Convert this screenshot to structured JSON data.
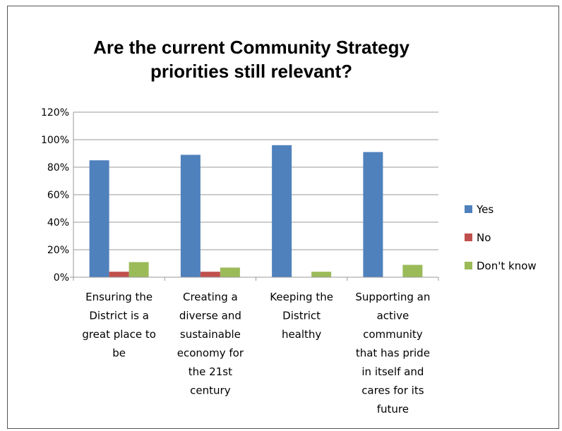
{
  "chart_data": {
    "type": "bar",
    "title_lines": [
      "Are the current Community Strategy",
      "priorities still relevant?"
    ],
    "categories": [
      [
        "Ensuring the",
        "District is a",
        "great place to",
        "be"
      ],
      [
        "Creating a",
        "diverse and",
        "sustainable",
        "economy for",
        "the 21st",
        "century"
      ],
      [
        "Keeping the",
        "District",
        "healthy"
      ],
      [
        "Supporting an",
        "active",
        "community",
        "that has pride",
        "in itself and",
        "cares for its",
        "future"
      ]
    ],
    "series": [
      {
        "name": "Yes",
        "color": "#4f81bd",
        "values": [
          85,
          89,
          96,
          91
        ]
      },
      {
        "name": "No",
        "color": "#c0504d",
        "values": [
          4,
          4,
          0,
          0
        ]
      },
      {
        "name": "Don't know",
        "color": "#9bbb59",
        "values": [
          11,
          7,
          4,
          9
        ]
      }
    ],
    "yticks": [
      "0%",
      "20%",
      "40%",
      "60%",
      "80%",
      "100%",
      "120%"
    ],
    "ylim": [
      0,
      120
    ],
    "grid": true,
    "legend_position": "right"
  }
}
